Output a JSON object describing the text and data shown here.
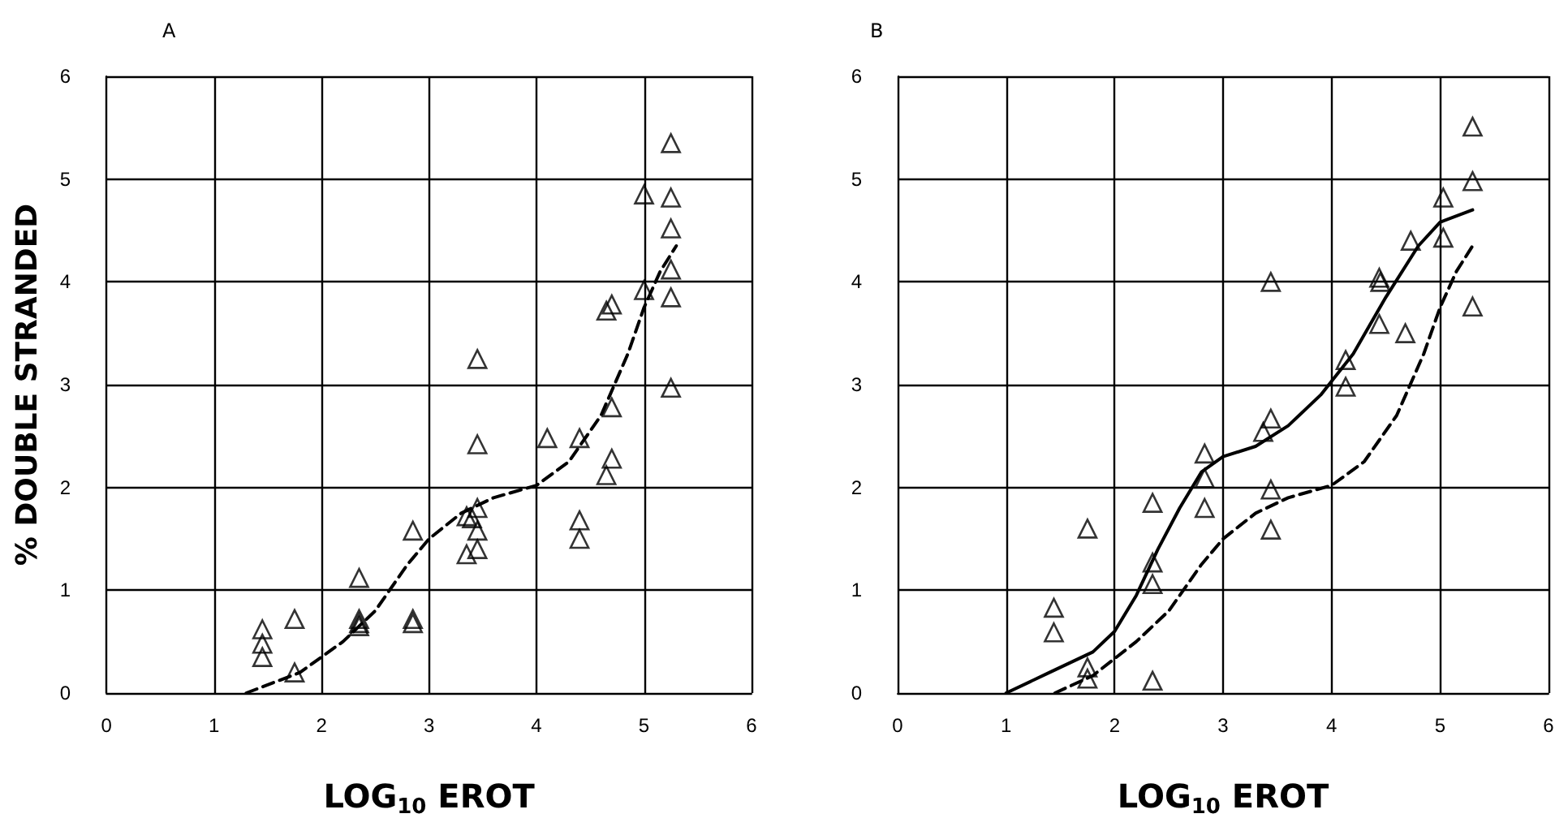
{
  "chart_data": [
    {
      "type": "scatter",
      "title": "A",
      "xlabel": "LOG$_{10}$ EROT",
      "ylabel": "% DOUBLE STRANDED",
      "xlim": [
        0,
        6
      ],
      "ylim": [
        0,
        6
      ],
      "xticks": [
        0,
        1,
        2,
        3,
        4,
        5,
        6
      ],
      "yticks": [
        0,
        1,
        2,
        3,
        4,
        5,
        6
      ],
      "grid": true,
      "marker": "triangle",
      "series": [
        {
          "color": "#000000",
          "x": [
            1.45,
            1.45,
            1.45,
            1.75,
            1.75,
            2.35,
            2.35,
            2.35,
            2.35,
            2.85,
            2.85,
            2.85,
            3.35,
            3.45,
            3.4,
            3.45,
            3.35,
            3.45,
            3.45,
            3.45,
            4.1,
            4.4,
            4.4,
            4.4,
            4.65,
            4.7,
            4.7,
            4.7,
            4.65,
            5.0,
            5.0,
            5.25,
            5.25,
            5.25,
            5.25,
            5.25,
            5.25
          ],
          "values": [
            0.62,
            0.48,
            0.35,
            0.72,
            0.2,
            1.12,
            0.72,
            0.68,
            0.65,
            1.58,
            0.72,
            0.68,
            1.72,
            1.8,
            1.7,
            1.58,
            1.35,
            1.4,
            3.25,
            2.42,
            2.48,
            2.48,
            1.68,
            1.5,
            3.72,
            3.78,
            2.78,
            2.28,
            2.12,
            4.85,
            3.92,
            5.35,
            4.82,
            4.52,
            4.12,
            3.85,
            2.97
          ]
        },
        {
          "type": "line",
          "color": "#000000",
          "line_style": "dashed",
          "marker": "none",
          "x": [
            1.3,
            1.8,
            2.2,
            2.5,
            2.8,
            3.0,
            3.3,
            3.6,
            4.0,
            4.3,
            4.6,
            4.85,
            5.0,
            5.15,
            5.3
          ],
          "values": [
            0,
            0.2,
            0.5,
            0.8,
            1.25,
            1.5,
            1.75,
            1.9,
            2.02,
            2.25,
            2.7,
            3.3,
            3.75,
            4.1,
            4.35
          ]
        }
      ]
    },
    {
      "type": "scatter",
      "title": "B",
      "xlabel": "LOG$_{10}$ EROT",
      "xlim": [
        0,
        6
      ],
      "ylim": [
        0,
        6
      ],
      "xticks": [
        0,
        1,
        2,
        3,
        4,
        5,
        6
      ],
      "yticks": [
        0,
        1,
        2,
        3,
        4,
        5,
        6
      ],
      "grid": true,
      "marker": "triangle",
      "series": [
        {
          "color": "#000000",
          "x": [
            1.44,
            1.44,
            1.75,
            1.75,
            1.75,
            2.35,
            2.35,
            2.35,
            2.35,
            2.83,
            2.83,
            2.83,
            3.37,
            3.44,
            3.44,
            3.44,
            3.44,
            4.13,
            4.13,
            4.44,
            4.44,
            4.45,
            4.68,
            4.73,
            5.03,
            5.03,
            5.3,
            5.3,
            5.3
          ],
          "values": [
            0.83,
            0.59,
            1.6,
            0.25,
            0.14,
            1.85,
            1.27,
            1.06,
            0.12,
            2.33,
            2.09,
            1.8,
            2.54,
            2.67,
            4.0,
            1.98,
            1.59,
            2.98,
            3.24,
            3.59,
            4.04,
            4.0,
            3.5,
            4.4,
            4.82,
            4.43,
            5.51,
            4.98,
            3.76
          ]
        },
        {
          "type": "line",
          "color": "#000000",
          "line_style": "solid",
          "marker": "none",
          "x": [
            1.0,
            1.4,
            1.8,
            2.0,
            2.2,
            2.4,
            2.6,
            2.8,
            3.0,
            3.3,
            3.6,
            3.9,
            4.2,
            4.5,
            4.8,
            5.0,
            5.3
          ],
          "values": [
            0,
            0.2,
            0.4,
            0.6,
            0.95,
            1.4,
            1.8,
            2.15,
            2.3,
            2.4,
            2.6,
            2.9,
            3.3,
            3.85,
            4.35,
            4.58,
            4.7
          ]
        },
        {
          "type": "line",
          "color": "#000000",
          "line_style": "dashed",
          "marker": "none",
          "x": [
            1.45,
            1.8,
            2.2,
            2.5,
            2.8,
            3.0,
            3.3,
            3.6,
            4.0,
            4.3,
            4.6,
            4.85,
            5.0,
            5.15,
            5.3
          ],
          "values": [
            0,
            0.17,
            0.5,
            0.8,
            1.25,
            1.5,
            1.75,
            1.9,
            2.02,
            2.25,
            2.7,
            3.3,
            3.75,
            4.1,
            4.35
          ]
        }
      ]
    }
  ]
}
